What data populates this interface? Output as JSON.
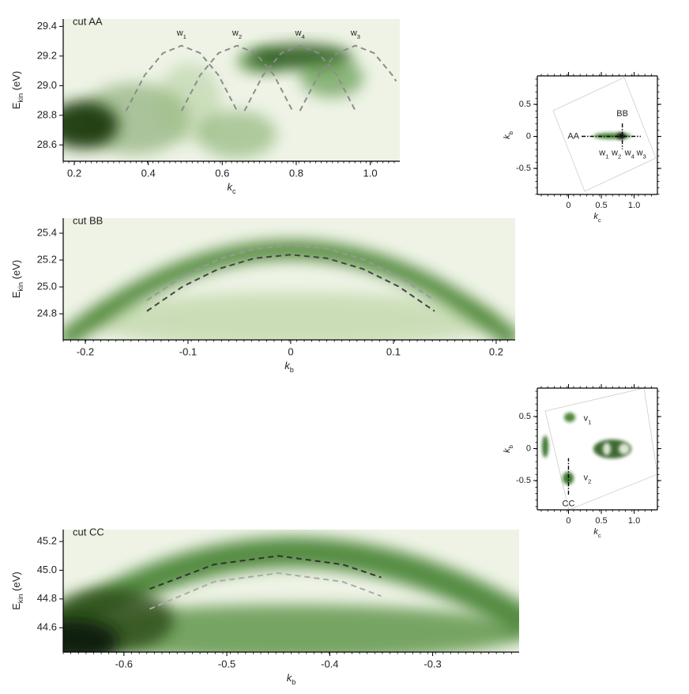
{
  "chart_data": [
    {
      "type": "heatmap",
      "title": "cut AA",
      "xlabel": [
        "k",
        "c"
      ],
      "ylabel": [
        "E",
        "kin",
        " (eV)"
      ],
      "xlim": [
        0.17,
        1.08
      ],
      "ylim": [
        28.49,
        29.45
      ],
      "xticks": [
        0.2,
        0.4,
        0.6,
        0.8,
        {
          "value": 1,
          "label": "1.0"
        }
      ],
      "yticks": [
        28.6,
        28.8,
        {
          "value": 29,
          "label": "29.0"
        },
        29.2,
        29.4
      ],
      "series": [
        {
          "label": [
            "w",
            "1"
          ],
          "color": "#8c8c8c",
          "x": [
            0.34,
            0.39,
            0.44,
            0.49,
            0.54,
            0.59,
            0.64
          ],
          "y": [
            28.83,
            29.07,
            29.22,
            29.27,
            29.22,
            29.07,
            28.83
          ]
        },
        {
          "label": [
            "w",
            "2"
          ],
          "color": "#8c8c8c",
          "x": [
            0.49,
            0.54,
            0.59,
            0.64,
            0.69,
            0.74,
            0.79
          ],
          "y": [
            28.83,
            29.07,
            29.22,
            29.27,
            29.22,
            29.07,
            28.83
          ]
        },
        {
          "label": [
            "w",
            "4"
          ],
          "color": "#8c8c8c",
          "x": [
            0.66,
            0.71,
            0.76,
            0.81,
            0.86,
            0.91,
            0.96
          ],
          "y": [
            28.83,
            29.07,
            29.22,
            29.27,
            29.22,
            29.07,
            28.83
          ]
        },
        {
          "label": [
            "w",
            "3"
          ],
          "color": "#8c8c8c",
          "x": [
            0.81,
            0.86,
            0.91,
            0.96,
            1.01,
            1.06,
            1.07
          ],
          "y": [
            28.83,
            29.07,
            29.22,
            29.27,
            29.22,
            29.07,
            29.03
          ]
        }
      ]
    },
    {
      "type": "map",
      "xlabel": [
        "k",
        "c"
      ],
      "ylabel": [
        "k",
        "b"
      ],
      "xlim": [
        -0.475,
        1.354
      ],
      "ylim": [
        -0.907,
        0.944
      ],
      "xticks": [
        0,
        0.5,
        {
          "value": 1,
          "label": "1.0"
        }
      ],
      "yticks": [
        -0.5,
        0,
        0.5
      ],
      "cuts": [
        {
          "label": "AA",
          "x": [
            0.2,
            1.1
          ],
          "y": [
            0,
            0
          ]
        },
        {
          "label": "BB",
          "x": [
            0.82,
            0.82
          ],
          "y": [
            0.2,
            -0.2
          ]
        }
      ],
      "point_labels": [
        {
          "text": [
            "w",
            "1"
          ],
          "x": 0.54,
          "y": -0.26
        },
        {
          "text": [
            "w",
            "2"
          ],
          "x": 0.73,
          "y": -0.26
        },
        {
          "text": [
            "w",
            "4"
          ],
          "x": 0.93,
          "y": -0.26
        },
        {
          "text": [
            "w",
            "3"
          ],
          "x": 1.11,
          "y": -0.26
        }
      ]
    },
    {
      "type": "heatmap",
      "title": "cut BB",
      "xlabel": [
        "k",
        "b"
      ],
      "ylabel": [
        "E",
        "kin",
        " (eV)"
      ],
      "xlim": [
        -0.2215,
        0.2185
      ],
      "ylim": [
        24.606,
        25.512
      ],
      "xticks": [
        -0.2,
        -0.1,
        0,
        0.1,
        0.2
      ],
      "yticks": [
        24.8,
        {
          "value": 25,
          "label": "25.0"
        },
        25.2,
        25.4
      ],
      "series": [
        {
          "color": "#999999",
          "x": [
            -0.14,
            -0.105,
            -0.07,
            -0.035,
            0,
            0.035,
            0.07,
            0.105,
            0.14
          ],
          "y": [
            24.9,
            25.079,
            25.207,
            25.284,
            25.31,
            25.284,
            25.207,
            25.079,
            24.9
          ]
        },
        {
          "color": "#444444",
          "x": [
            -0.14,
            -0.105,
            -0.07,
            -0.035,
            0,
            0.035,
            0.07,
            0.105,
            0.14
          ],
          "y": [
            24.82,
            25.004,
            25.135,
            25.214,
            25.24,
            25.214,
            25.135,
            25.004,
            24.82
          ]
        }
      ]
    },
    {
      "type": "map",
      "xlabel": [
        "k",
        "c"
      ],
      "ylabel": [
        "k",
        "b"
      ],
      "xlim": [
        -0.475,
        1.354
      ],
      "ylim": [
        -0.957,
        0.944
      ],
      "xticks": [
        0,
        0.5,
        {
          "value": 1,
          "label": "1.0"
        }
      ],
      "yticks": [
        -0.5,
        0,
        0.5
      ],
      "cuts": [
        {
          "label": "CC",
          "x": [
            0,
            0
          ],
          "y": [
            -0.72,
            -0.15
          ]
        }
      ],
      "point_labels": [
        {
          "text": [
            "v",
            "1"
          ],
          "x": 0.23,
          "y": 0.47
        },
        {
          "text": [
            "v",
            "2"
          ],
          "x": 0.23,
          "y": -0.46
        }
      ]
    },
    {
      "type": "heatmap",
      "title": "cut CC",
      "xlabel": [
        "k",
        "b"
      ],
      "ylabel": [
        "E",
        "kin",
        " (eV)"
      ],
      "xlim": [
        -0.659,
        -0.216
      ],
      "ylim": [
        44.43,
        45.283
      ],
      "xticks": [
        -0.6,
        -0.5,
        -0.4,
        -0.3
      ],
      "yticks": [
        44.6,
        44.8,
        {
          "value": 45,
          "label": "45.0"
        },
        45.2
      ],
      "series": [
        {
          "color": "#333333",
          "x": [
            -0.575,
            -0.5125,
            -0.45,
            -0.3875,
            -0.35
          ],
          "y": [
            44.87,
            45.04,
            45.1,
            45.04,
            44.95
          ]
        },
        {
          "color": "#aaaaaa",
          "x": [
            -0.575,
            -0.5125,
            -0.45,
            -0.3875,
            -0.35
          ],
          "y": [
            44.73,
            44.92,
            44.98,
            44.92,
            44.82
          ]
        }
      ]
    }
  ]
}
